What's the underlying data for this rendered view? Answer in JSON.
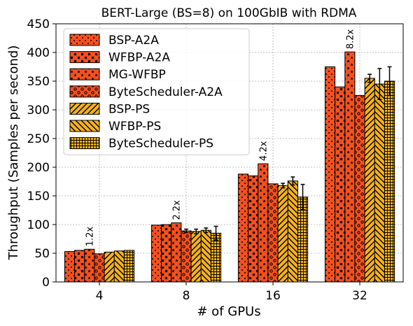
{
  "chart_data": {
    "type": "bar",
    "title": "BERT-Large (BS=8) on 100GbIB with RDMA",
    "xlabel": "# of GPUs",
    "ylabel": "Throughput (Samples per second)",
    "ylim": [
      0,
      450
    ],
    "yticks": [
      0,
      50,
      100,
      150,
      200,
      250,
      300,
      350,
      400,
      450
    ],
    "grid": true,
    "legend_position": "top-left",
    "categories": [
      "4",
      "8",
      "16",
      "32"
    ],
    "series": [
      {
        "name": "BSP-A2A",
        "color": "#f4511e",
        "pattern": "dots-small",
        "values": [
          53,
          99,
          188,
          375
        ],
        "errors": [
          0,
          0,
          0,
          0
        ]
      },
      {
        "name": "WFBP-A2A",
        "color": "#f4511e",
        "pattern": "dots-large",
        "values": [
          55,
          100,
          185,
          340
        ],
        "errors": [
          0,
          0,
          0,
          0
        ]
      },
      {
        "name": "MG-WFBP",
        "color": "#f4511e",
        "pattern": "stars",
        "values": [
          57,
          103,
          206,
          401
        ],
        "errors": [
          0,
          0,
          0,
          0
        ]
      },
      {
        "name": "ByteScheduler-A2A",
        "color": "#f4511e",
        "pattern": "rings",
        "values": [
          49,
          89,
          171,
          325
        ],
        "errors": [
          0,
          3,
          0,
          0
        ]
      },
      {
        "name": "BSP-PS",
        "color": "#f5b21b",
        "pattern": "diag-up",
        "values": [
          52,
          88,
          168,
          355
        ],
        "errors": [
          0,
          4,
          4,
          7
        ]
      },
      {
        "name": "WFBP-PS",
        "color": "#f5b21b",
        "pattern": "diag-down",
        "values": [
          54,
          90,
          176,
          345
        ],
        "errors": [
          0,
          4,
          7,
          27
        ]
      },
      {
        "name": "ByteScheduler-PS",
        "color": "#f5b21b",
        "pattern": "grid",
        "values": [
          55,
          85,
          148,
          350
        ],
        "errors": [
          0,
          12,
          22,
          25
        ]
      }
    ],
    "annotations": [
      {
        "category": "4",
        "series": "MG-WFBP",
        "text": "1.2x"
      },
      {
        "category": "8",
        "series": "MG-WFBP",
        "text": "2.2x"
      },
      {
        "category": "16",
        "series": "MG-WFBP",
        "text": "4.2x"
      },
      {
        "category": "32",
        "series": "MG-WFBP",
        "text": "8.2x"
      }
    ]
  }
}
